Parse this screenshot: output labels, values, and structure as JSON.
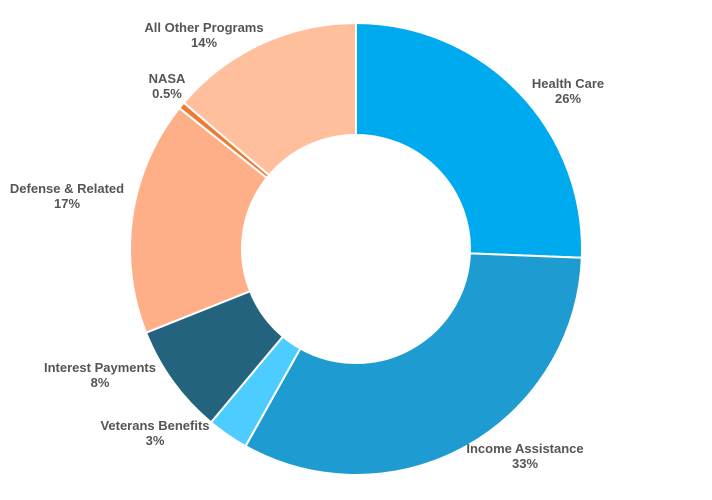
{
  "chart_data": {
    "type": "pie",
    "variant": "donut",
    "title": "",
    "slices": [
      {
        "name": "Health Care",
        "value": 26,
        "label": "26%",
        "color": "#00aaee"
      },
      {
        "name": "Income Assistance",
        "value": 33,
        "label": "33%",
        "color": "#1e9bd0"
      },
      {
        "name": "Veterans Benefits",
        "value": 3,
        "label": "3%",
        "color": "#4dccff"
      },
      {
        "name": "Interest Payments",
        "value": 8,
        "label": "8%",
        "color": "#23637d"
      },
      {
        "name": "Defense & Related",
        "value": 17,
        "label": "17%",
        "color": "#ffaf88"
      },
      {
        "name": "NASA",
        "value": 0.5,
        "label": "0.5%",
        "color": "#ee7b31"
      },
      {
        "name": "All Other Programs",
        "value": 14,
        "label": "14%",
        "color": "#ffbf9c"
      }
    ]
  }
}
